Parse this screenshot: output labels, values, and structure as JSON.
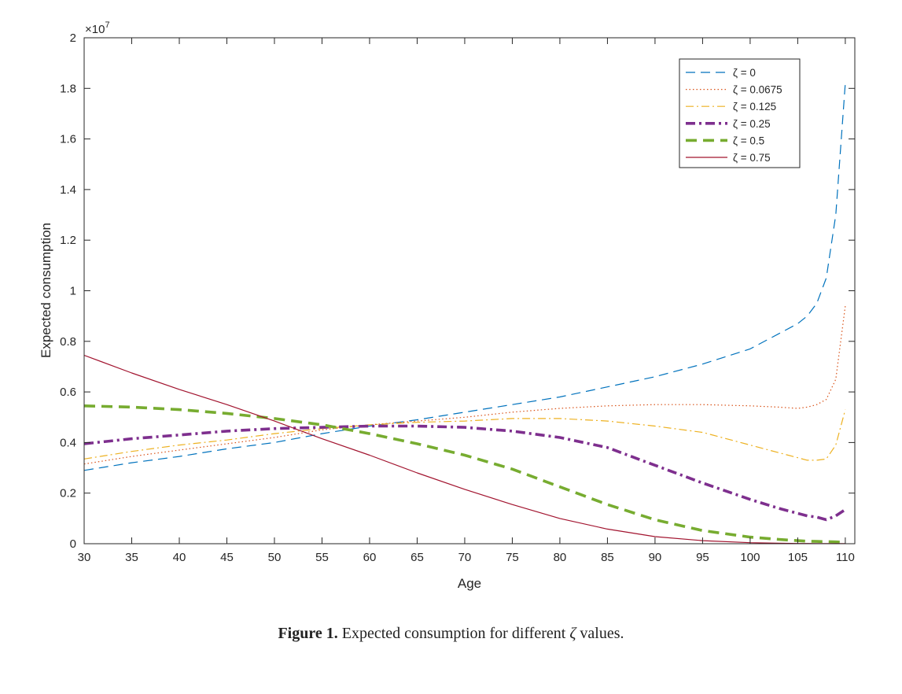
{
  "chart_data": {
    "type": "line",
    "xlabel": "Age",
    "ylabel": "Expected consumption",
    "y_exponent_label": "×10",
    "y_exponent_power": "7",
    "xlim": [
      30,
      111
    ],
    "ylim": [
      0,
      20000000
    ],
    "xticks": [
      30,
      35,
      40,
      45,
      50,
      55,
      60,
      65,
      70,
      75,
      80,
      85,
      90,
      95,
      100,
      105,
      110
    ],
    "yticks": [
      0,
      2000000,
      4000000,
      6000000,
      8000000,
      10000000,
      12000000,
      14000000,
      16000000,
      18000000,
      20000000
    ],
    "ytick_labels": [
      "0",
      "0.2",
      "0.4",
      "0.6",
      "0.8",
      "1",
      "1.2",
      "1.4",
      "1.6",
      "1.8",
      "2"
    ],
    "grid": false,
    "legend_position": "top-right",
    "x": [
      30,
      35,
      40,
      45,
      50,
      55,
      60,
      65,
      70,
      75,
      80,
      85,
      90,
      95,
      100,
      103,
      105,
      106,
      107,
      108,
      109,
      110
    ],
    "series": [
      {
        "name": "ζ = 0",
        "color": "#0072BD",
        "style": "dashed",
        "width": 1.2,
        "values": [
          2900000,
          3200000,
          3450000,
          3750000,
          4000000,
          4350000,
          4650000,
          4900000,
          5200000,
          5500000,
          5800000,
          6200000,
          6600000,
          7100000,
          7700000,
          8300000,
          8700000,
          9000000,
          9500000,
          10500000,
          13000000,
          18200000
        ]
      },
      {
        "name": "ζ = 0.0675",
        "color": "#D95319",
        "style": "dotted",
        "width": 1.2,
        "values": [
          3150000,
          3450000,
          3700000,
          3950000,
          4200000,
          4500000,
          4700000,
          4850000,
          5000000,
          5200000,
          5350000,
          5450000,
          5500000,
          5500000,
          5450000,
          5400000,
          5350000,
          5400000,
          5500000,
          5700000,
          6500000,
          9400000
        ]
      },
      {
        "name": "ζ = 0.125",
        "color": "#EDB120",
        "style": "dashdot",
        "width": 1.2,
        "values": [
          3350000,
          3650000,
          3900000,
          4100000,
          4350000,
          4550000,
          4700000,
          4800000,
          4850000,
          4950000,
          4950000,
          4850000,
          4650000,
          4400000,
          3900000,
          3600000,
          3400000,
          3300000,
          3300000,
          3350000,
          3900000,
          5300000
        ]
      },
      {
        "name": "ζ = 0.25",
        "color": "#7E2F8E",
        "style": "dashdot",
        "width": 3.6,
        "values": [
          3950000,
          4150000,
          4300000,
          4450000,
          4550000,
          4600000,
          4650000,
          4650000,
          4600000,
          4450000,
          4200000,
          3800000,
          3100000,
          2400000,
          1750000,
          1400000,
          1200000,
          1100000,
          1050000,
          950000,
          1100000,
          1350000
        ]
      },
      {
        "name": "ζ = 0.5",
        "color": "#77AC30",
        "style": "dashed",
        "width": 3.6,
        "values": [
          5450000,
          5400000,
          5300000,
          5150000,
          4950000,
          4700000,
          4350000,
          3950000,
          3500000,
          2950000,
          2250000,
          1550000,
          950000,
          520000,
          260000,
          170000,
          120000,
          100000,
          90000,
          80000,
          70000,
          60000
        ]
      },
      {
        "name": "ζ = 0.75",
        "color": "#A2142F",
        "style": "solid",
        "width": 1.2,
        "values": [
          7450000,
          6750000,
          6100000,
          5500000,
          4850000,
          4150000,
          3500000,
          2800000,
          2150000,
          1550000,
          1000000,
          580000,
          280000,
          120000,
          40000,
          20000,
          10000,
          8000,
          6000,
          5000,
          4000,
          3000
        ]
      }
    ]
  },
  "caption": {
    "figure_label": "Figure 1.",
    "text_before": " Expected consumption for different ",
    "symbol": "ζ",
    "text_after": " values."
  }
}
